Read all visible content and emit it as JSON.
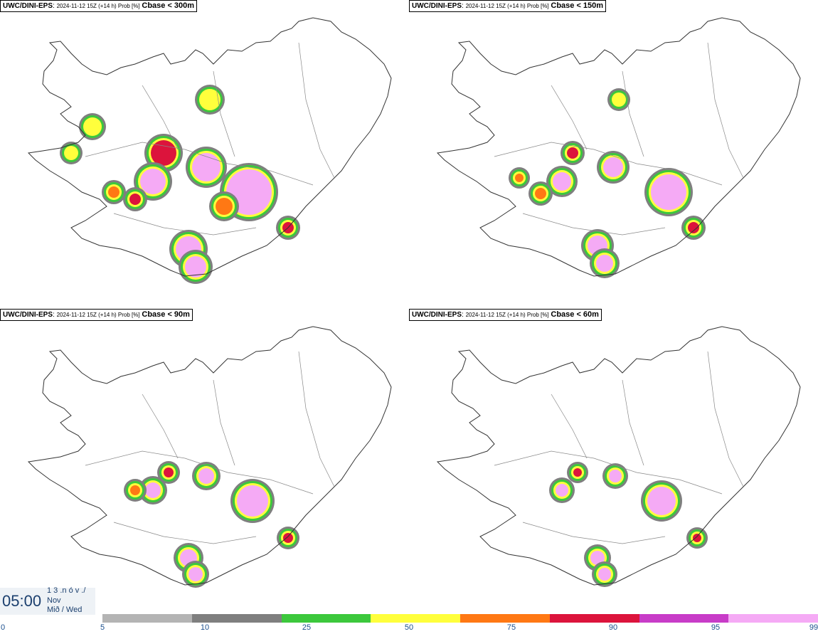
{
  "panels": [
    {
      "model": "UWC/DINI-EPS",
      "meta": "2024-11-12 15Z (+14 h) Prob [%]",
      "threshold": "Cbase < 300m"
    },
    {
      "model": "UWC/DINI-EPS",
      "meta": "2024-11-12 15Z (+14 h) Prob [%]",
      "threshold": "Cbase < 150m"
    },
    {
      "model": "UWC/DINI-EPS",
      "meta": "2024-11-12 15Z (+14 h) Prob [%]",
      "threshold": "Cbase < 90m"
    },
    {
      "model": "UWC/DINI-EPS",
      "meta": "2024-11-12 15Z (+14 h) Prob [%]",
      "threshold": "Cbase < 60m"
    }
  ],
  "timestamp": {
    "time": "05:00",
    "date_top": "1 3 .n ó v ./",
    "month": "Nov",
    "day": "Mið / Wed"
  },
  "colorbar": {
    "labels": [
      "0",
      "5",
      "10",
      "25",
      "50",
      "75",
      "90",
      "95",
      "99"
    ],
    "colors": [
      "#ffffff",
      "#b4b4b4",
      "#7f7f7f",
      "#3cc83c",
      "#ffff3c",
      "#ff7814",
      "#dc143c",
      "#c83cc8",
      "#f5aaf5"
    ]
  }
}
